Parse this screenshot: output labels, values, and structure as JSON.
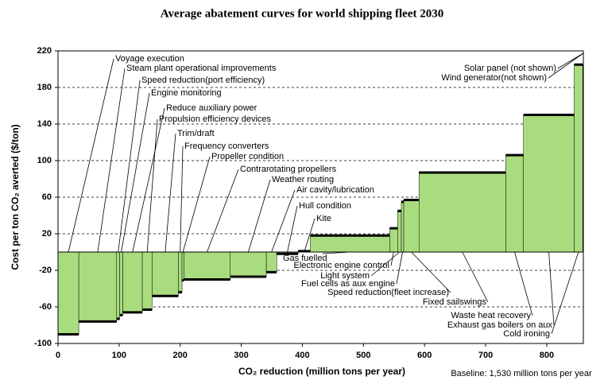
{
  "chart_data": {
    "type": "abatement",
    "title": "Average abatement curves for world shipping fleet 2030",
    "y_label": "Cost per ton CO₂ averted ($/ton)",
    "x_label": "CO₂ reduction (million tons per year)",
    "note": "Baseline: 1,530 million tons per year",
    "categories": [
      "Voyage execution",
      "Steam plant operational improvements",
      "Speed reduction(port efficiency)",
      "Engine monitoring",
      "Reduce auxiliary power",
      "Propulsion efficiency devices",
      "Trim/draft",
      "Frequency converters",
      "Propeller condition",
      "Contrarotating propellers",
      "Weather routing",
      "Air cavity/lubrication",
      "Hull condition",
      "Kite",
      "Gas fuelled",
      "Electronic engine control",
      "Light system",
      "Fuel cells as aux engine",
      "Speed reduction(fleet increase)",
      "Fixed sailswings",
      "Waste heat recovery",
      "Exhaust gas boilers on aux",
      "Cold ironing",
      "Wind generator(not shown)",
      "Solar panel (not shown)"
    ],
    "widths": [
      34,
      62,
      5,
      5,
      32,
      16,
      43,
      6,
      3,
      76,
      59,
      17,
      35,
      20,
      130,
      13,
      6,
      4,
      25,
      142,
      29,
      83,
      14,
      null,
      null
    ],
    "values": [
      -90,
      -76,
      -73,
      -69,
      -66,
      -63,
      -48,
      -44,
      -31,
      -30,
      -27,
      -22,
      -2,
      1,
      18,
      26,
      45,
      55,
      57,
      87,
      106,
      150,
      205,
      null,
      null
    ],
    "color": "#a9dc7e",
    "xlim": [
      0,
      860
    ],
    "xticks": [
      0,
      100,
      200,
      300,
      400,
      500,
      600,
      700,
      800
    ],
    "ylim": [
      -100,
      220
    ],
    "yticks": [
      -100,
      -60,
      -20,
      20,
      60,
      100,
      140,
      180,
      220
    ],
    "grid": true
  }
}
